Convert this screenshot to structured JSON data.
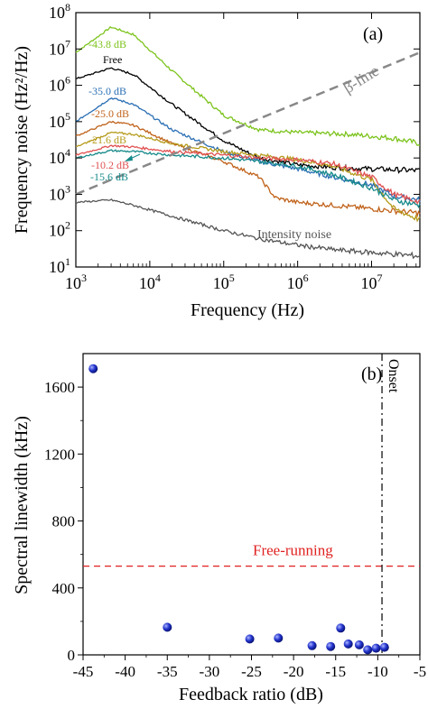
{
  "chart_data": [
    {
      "panel": "(a)",
      "type": "line",
      "xscale": "log",
      "yscale": "log",
      "xlim": [
        1000,
        45000000
      ],
      "ylim": [
        10,
        100000000
      ],
      "xlabel": "Frequency (Hz)",
      "ylabel": "Frequency noise (Hz²/Hz)",
      "x_ticks": [
        {
          "v": 1000,
          "b": "10",
          "e": "3"
        },
        {
          "v": 10000,
          "b": "10",
          "e": "4"
        },
        {
          "v": 100000,
          "b": "10",
          "e": "5"
        },
        {
          "v": 1000000,
          "b": "10",
          "e": "6"
        },
        {
          "v": 10000000,
          "b": "10",
          "e": "7"
        }
      ],
      "y_ticks": [
        {
          "v": 10,
          "b": "10",
          "e": "1"
        },
        {
          "v": 100,
          "b": "10",
          "e": "2"
        },
        {
          "v": 1000,
          "b": "10",
          "e": "3"
        },
        {
          "v": 10000,
          "b": "10",
          "e": "4"
        },
        {
          "v": 100000,
          "b": "10",
          "e": "5"
        },
        {
          "v": 1000000,
          "b": "10",
          "e": "6"
        },
        {
          "v": 10000000,
          "b": "10",
          "e": "7"
        },
        {
          "v": 100000000,
          "b": "10",
          "e": "8"
        }
      ],
      "series": [
        {
          "name": "-43.8 dB",
          "color": "#7cc31c",
          "x": [
            1000,
            3000,
            6000,
            20000,
            100000,
            300000,
            1000000,
            5000000,
            20000000,
            45000000
          ],
          "y": [
            8000000,
            40000000,
            25000000,
            2500000,
            150000,
            60000,
            50000,
            45000,
            35000,
            25000
          ]
        },
        {
          "name": "Free",
          "color": "#000000",
          "x": [
            1000,
            3000,
            6000,
            20000,
            100000,
            300000,
            1000000,
            3000000,
            10000000,
            45000000
          ],
          "y": [
            1500000,
            3000000,
            2000000,
            300000,
            30000,
            10000,
            6500,
            5500,
            5000,
            4500
          ]
        },
        {
          "name": "-35.0 dB",
          "color": "#2a6fb4",
          "x": [
            1000,
            3000,
            6000,
            20000,
            100000,
            300000,
            1000000,
            3000000,
            10000000,
            20000000,
            45000000
          ],
          "y": [
            100000,
            450000,
            300000,
            60000,
            15000,
            8000,
            5000,
            3000,
            1800,
            900,
            700
          ]
        },
        {
          "name": "-25.0 dB",
          "color": "#c0621a",
          "x": [
            1000,
            3000,
            6000,
            20000,
            100000,
            300000,
            500000,
            1000000,
            3000000,
            10000000,
            45000000
          ],
          "y": [
            40000,
            100000,
            80000,
            25000,
            8000,
            3000,
            800,
            600,
            500,
            400,
            300
          ]
        },
        {
          "name": "-21.6 dB",
          "color": "#b59b1c",
          "x": [
            1000,
            3000,
            6000,
            20000,
            100000,
            300000,
            1000000,
            3000000,
            10000000,
            20000000,
            45000000
          ],
          "y": [
            20000,
            50000,
            45000,
            25000,
            15000,
            12000,
            9000,
            6000,
            2500,
            400,
            200
          ]
        },
        {
          "name": "-10.2 dB",
          "color": "#e05050",
          "x": [
            1000,
            3000,
            6000,
            20000,
            100000,
            300000,
            1000000,
            3000000,
            10000000,
            20000000,
            45000000
          ],
          "y": [
            12000,
            22000,
            20000,
            15000,
            12000,
            10000,
            9000,
            7000,
            3000,
            1000,
            600
          ]
        },
        {
          "name": "-15.6 dB",
          "color": "#178a8a",
          "x": [
            1000,
            3000,
            6000,
            20000,
            100000,
            300000,
            1000000,
            3000000,
            10000000,
            20000000,
            45000000
          ],
          "y": [
            10000,
            16000,
            15000,
            12000,
            10000,
            8000,
            6000,
            3500,
            1500,
            700,
            500
          ]
        },
        {
          "name": "Intensity noise",
          "color": "#555555",
          "x": [
            1000,
            3000,
            6000,
            20000,
            100000,
            300000,
            1000000,
            3000000,
            10000000,
            45000000
          ],
          "y": [
            600,
            700,
            500,
            250,
            100,
            60,
            40,
            30,
            25,
            20
          ]
        },
        {
          "name": "β-line",
          "color": "#888888",
          "dashed": true,
          "x": [
            1000,
            45000000
          ],
          "y": [
            1000,
            8000000
          ]
        }
      ],
      "annotations": {
        "panel_label": "(a)",
        "beta_line_label": "β-line",
        "intensity_label": "Intensity noise"
      }
    },
    {
      "panel": "(b)",
      "type": "scatter",
      "xlim": [
        -45,
        -5
      ],
      "ylim": [
        0,
        1800
      ],
      "xlabel": "Feedback ratio (dB)",
      "ylabel": "Spectral linewidth (kHz)",
      "x_ticks": [
        "-45",
        "-40",
        "-35",
        "-30",
        "-25",
        "-20",
        "-15",
        "-10",
        "-5"
      ],
      "y_ticks": [
        "0",
        "400",
        "800",
        "1200",
        "1600"
      ],
      "points": [
        {
          "x": -43.8,
          "y": 1710
        },
        {
          "x": -35.0,
          "y": 165
        },
        {
          "x": -25.2,
          "y": 95
        },
        {
          "x": -21.8,
          "y": 100
        },
        {
          "x": -17.8,
          "y": 55
        },
        {
          "x": -15.6,
          "y": 50
        },
        {
          "x": -14.4,
          "y": 160
        },
        {
          "x": -13.5,
          "y": 65
        },
        {
          "x": -12.2,
          "y": 60
        },
        {
          "x": -11.2,
          "y": 30
        },
        {
          "x": -10.2,
          "y": 40
        },
        {
          "x": -9.2,
          "y": 45
        }
      ],
      "reference_lines": [
        {
          "label": "Free-running",
          "orientation": "horizontal",
          "value": 530,
          "color": "#e02020",
          "style": "dashed"
        },
        {
          "label": "Onset",
          "orientation": "vertical",
          "value": -9.5,
          "color": "#000000",
          "style": "dash-dot"
        }
      ],
      "marker_color": "#2233cc",
      "annotations": {
        "panel_label": "(b)"
      }
    }
  ]
}
